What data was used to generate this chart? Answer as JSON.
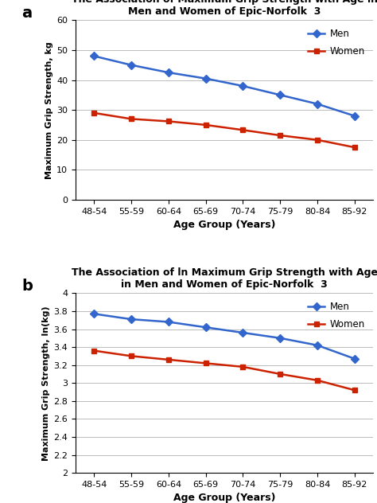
{
  "age_groups": [
    "48-54",
    "55-59",
    "60-64",
    "65-69",
    "70-74",
    "75-79",
    "80-84",
    "85-92"
  ],
  "panel_a": {
    "title_line1": "The Association of Maximum Grip Strength with Age in",
    "title_line2": "Men and Women of Epic-Norfolk  3",
    "ylabel": "Maximum Grip Strength, kg",
    "xlabel": "Age Group (Years)",
    "men_values": [
      48,
      45,
      42.5,
      40.5,
      38,
      35,
      32,
      28
    ],
    "women_values": [
      29,
      27,
      26.2,
      25,
      23.3,
      21.5,
      20,
      17.5
    ],
    "ylim": [
      0,
      60
    ],
    "yticks": [
      0,
      10,
      20,
      30,
      40,
      50,
      60
    ],
    "men_color": "#3366CC",
    "women_color": "#CC2200",
    "label": "a"
  },
  "panel_b": {
    "title_line1": "The Association of ln Maximum Grip Strength with Age",
    "title_line2": "in Men and Women of Epic-Norfolk  3",
    "ylabel": "Maximum Grip Strength, ln(kg)",
    "xlabel": "Age Group (Years)",
    "men_values": [
      3.77,
      3.71,
      3.68,
      3.62,
      3.56,
      3.5,
      3.42,
      3.27
    ],
    "women_values": [
      3.36,
      3.3,
      3.26,
      3.22,
      3.18,
      3.1,
      3.03,
      2.92
    ],
    "ylim": [
      2,
      4
    ],
    "yticks": [
      2.0,
      2.2,
      2.4,
      2.6,
      2.8,
      3.0,
      3.2,
      3.4,
      3.6,
      3.8,
      4.0
    ],
    "men_color": "#3366CC",
    "women_color": "#CC2200",
    "label": "b"
  },
  "legend_men": "Men",
  "legend_women": "Women",
  "bg_color": "#FFFFFF",
  "grid_color": "#BBBBBB"
}
